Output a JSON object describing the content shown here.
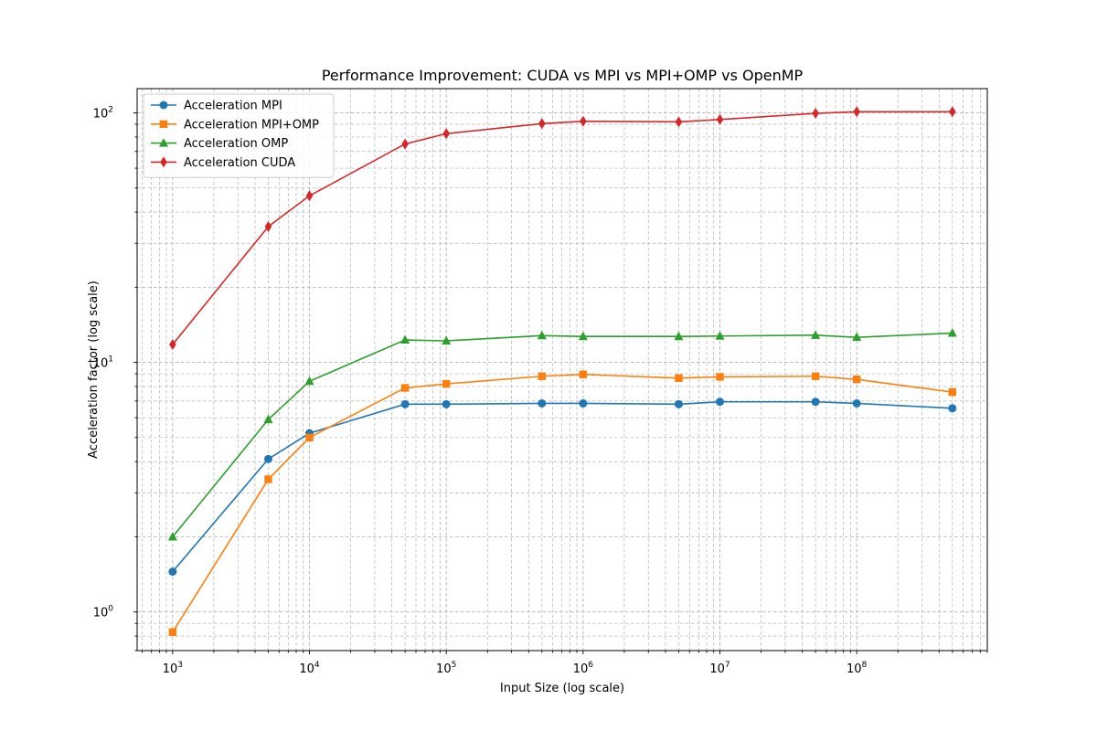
{
  "chart_data": {
    "type": "line",
    "title": "Performance Improvement: CUDA vs MPI vs MPI+OMP vs OpenMP",
    "xlabel": "Input Size (log scale)",
    "ylabel": "Acceleration factor (log scale)",
    "x_scale": "log",
    "y_scale": "log",
    "xlim": [
      550,
      900000000
    ],
    "ylim": [
      0.7,
      125
    ],
    "grid": true,
    "legend_position": "top-left",
    "x_tick_labels": [
      {
        "base": "10",
        "exp": "3",
        "value": 1000
      },
      {
        "base": "10",
        "exp": "4",
        "value": 10000
      },
      {
        "base": "10",
        "exp": "5",
        "value": 100000
      },
      {
        "base": "10",
        "exp": "6",
        "value": 1000000
      },
      {
        "base": "10",
        "exp": "7",
        "value": 10000000
      },
      {
        "base": "10",
        "exp": "8",
        "value": 100000000
      }
    ],
    "y_tick_labels": [
      {
        "base": "10",
        "exp": "0",
        "value": 1
      },
      {
        "base": "10",
        "exp": "1",
        "value": 10
      },
      {
        "base": "10",
        "exp": "2",
        "value": 100
      }
    ],
    "x": [
      1000,
      5000,
      10000,
      50000,
      100000,
      500000,
      1000000,
      5000000,
      10000000,
      50000000,
      100000000,
      500000000
    ],
    "series": [
      {
        "name": "Acceleration MPI",
        "color": "#1f77b4",
        "marker": "circle",
        "values": [
          1.45,
          4.1,
          5.2,
          6.8,
          6.8,
          6.85,
          6.85,
          6.8,
          6.95,
          6.95,
          6.85,
          6.55
        ]
      },
      {
        "name": "Acceleration MPI+OMP",
        "color": "#ff7f0e",
        "marker": "square",
        "values": [
          0.83,
          3.4,
          5.0,
          7.9,
          8.2,
          8.8,
          8.95,
          8.65,
          8.75,
          8.8,
          8.55,
          7.6
        ]
      },
      {
        "name": "Acceleration OMP",
        "color": "#2ca02c",
        "marker": "triangle",
        "values": [
          2.0,
          5.9,
          8.4,
          12.3,
          12.2,
          12.8,
          12.7,
          12.7,
          12.75,
          12.85,
          12.6,
          13.1
        ]
      },
      {
        "name": "Acceleration CUDA",
        "color": "#d62728",
        "marker": "diamond",
        "values": [
          11.8,
          35.0,
          46.5,
          75.0,
          82.5,
          90.5,
          92.5,
          92.0,
          94.0,
          99.5,
          101.0,
          101.0
        ]
      }
    ]
  }
}
